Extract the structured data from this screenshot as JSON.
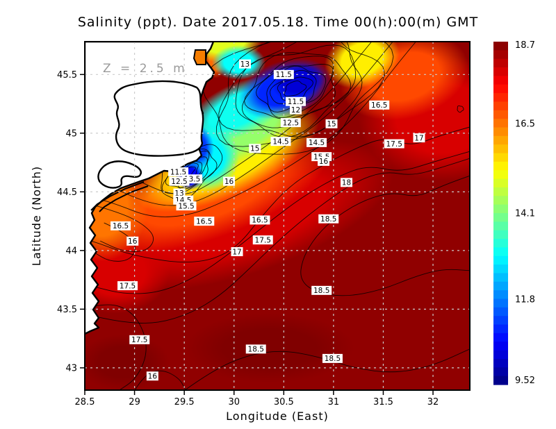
{
  "title": "Salinity (ppt). Date 2017.05.18. Time 00(h):00(m) GMT",
  "annotation": "Z = 2.5 m",
  "axes": {
    "xlabel": "Longitude (East)",
    "ylabel": "Latitude (North)",
    "x_ticks": [
      28.5,
      29,
      29.5,
      30,
      30.5,
      31,
      31.5,
      32
    ],
    "x_tick_labels": [
      "28.5",
      "29",
      "29.5",
      "30",
      "30.5",
      "31",
      "31.5",
      "32"
    ],
    "y_ticks": [
      45.5,
      45,
      44.5,
      44,
      43.5,
      43
    ],
    "y_tick_labels": [
      "45.5",
      "45",
      "44.5",
      "44",
      "43.5",
      "43"
    ]
  },
  "colors": {
    "land": "#ffffff",
    "coast": "#000000",
    "grid": "#cccccc",
    "annotation": "#9a9a9a",
    "inlet": "#f57d00",
    "frame": "#000000"
  },
  "chart_data": {
    "type": "heatmap",
    "subtype": "filled-contour-map",
    "title": "Salinity (ppt). Date 2017.05.18. Time 00(h):00(m) GMT",
    "variable": "Salinity",
    "units": "ppt",
    "date": "2017.05.18",
    "time": "00(h):00(m) GMT",
    "depth_annotation": "Z = 2.5 m",
    "xlabel": "Longitude (East)",
    "ylabel": "Latitude (North)",
    "xlim": [
      28.5,
      32.37
    ],
    "ylim": [
      42.81,
      45.78
    ],
    "grid": true,
    "colormap": "jet",
    "vmin": 9.52,
    "vmax": 18.7,
    "colorbar_ticks": [
      18.7,
      16.5,
      14.1,
      11.8,
      9.52
    ],
    "colorbar_tick_labels": [
      "18.7",
      "16.5",
      "14.1",
      "11.8",
      "9.52"
    ],
    "contour_labels": [
      {
        "v": "13",
        "lon": 30.11,
        "lat": 45.59
      },
      {
        "v": "11.5",
        "lon": 30.5,
        "lat": 45.5
      },
      {
        "v": "11.5",
        "lon": 30.62,
        "lat": 45.27
      },
      {
        "v": "12",
        "lon": 30.62,
        "lat": 45.2
      },
      {
        "v": "12.5",
        "lon": 30.57,
        "lat": 45.09
      },
      {
        "v": "15",
        "lon": 30.98,
        "lat": 45.08
      },
      {
        "v": "14.5",
        "lon": 30.47,
        "lat": 44.93
      },
      {
        "v": "14.5",
        "lon": 30.83,
        "lat": 44.92
      },
      {
        "v": "15",
        "lon": 30.21,
        "lat": 44.87
      },
      {
        "v": "16.5",
        "lon": 31.46,
        "lat": 45.24
      },
      {
        "v": "17",
        "lon": 31.86,
        "lat": 44.96
      },
      {
        "v": "17.5",
        "lon": 31.61,
        "lat": 44.91
      },
      {
        "v": "15.5",
        "lon": 30.88,
        "lat": 44.8
      },
      {
        "v": "16",
        "lon": 30.9,
        "lat": 44.76
      },
      {
        "v": "18",
        "lon": 31.13,
        "lat": 44.58
      },
      {
        "v": "16",
        "lon": 29.95,
        "lat": 44.59
      },
      {
        "v": "11.5",
        "lon": 29.44,
        "lat": 44.67
      },
      {
        "v": "13.5",
        "lon": 29.58,
        "lat": 44.61
      },
      {
        "v": "12.5",
        "lon": 29.45,
        "lat": 44.59
      },
      {
        "v": "13",
        "lon": 29.45,
        "lat": 44.49
      },
      {
        "v": "14.5",
        "lon": 29.49,
        "lat": 44.43
      },
      {
        "v": "15.5",
        "lon": 29.52,
        "lat": 44.38
      },
      {
        "v": "16.5",
        "lon": 29.7,
        "lat": 44.25
      },
      {
        "v": "16.5",
        "lon": 30.26,
        "lat": 44.26
      },
      {
        "v": "18.5",
        "lon": 30.95,
        "lat": 44.27
      },
      {
        "v": "16.5",
        "lon": 28.86,
        "lat": 44.21
      },
      {
        "v": "16",
        "lon": 28.98,
        "lat": 44.08
      },
      {
        "v": "17.5",
        "lon": 30.29,
        "lat": 44.09
      },
      {
        "v": "17",
        "lon": 30.03,
        "lat": 43.99
      },
      {
        "v": "17.5",
        "lon": 28.93,
        "lat": 43.7
      },
      {
        "v": "18.5",
        "lon": 30.88,
        "lat": 43.66
      },
      {
        "v": "17.5",
        "lon": 29.05,
        "lat": 43.24
      },
      {
        "v": "18.5",
        "lon": 30.22,
        "lat": 43.16
      },
      {
        "v": "18.5",
        "lon": 30.99,
        "lat": 43.08
      },
      {
        "v": "16",
        "lon": 29.18,
        "lat": 42.93
      }
    ],
    "field_blobs": [
      {
        "v": 18.55,
        "base": true
      },
      {
        "v": 18.7,
        "cx": 0.6,
        "cy": 0.42,
        "rx": 0.1,
        "ry": 0.08,
        "rot": 0
      },
      {
        "v": 18.7,
        "cx": 0.48,
        "cy": 0.88,
        "rx": 0.22,
        "ry": 0.1,
        "rot": 0
      },
      {
        "v": 18.7,
        "cx": 0.1,
        "cy": 0.92,
        "rx": 0.12,
        "ry": 0.08,
        "rot": 0
      },
      {
        "v": 17.9,
        "cx": 0.4,
        "cy": 0.5,
        "rx": 0.42,
        "ry": 0.17,
        "rot": -18
      },
      {
        "v": 17.9,
        "cx": 0.93,
        "cy": 0.22,
        "rx": 0.22,
        "ry": 0.18,
        "rot": 0
      },
      {
        "v": 17.9,
        "cx": 0.08,
        "cy": 0.66,
        "rx": 0.14,
        "ry": 0.12,
        "rot": 0
      },
      {
        "v": 16.9,
        "cx": 0.32,
        "cy": 0.43,
        "rx": 0.33,
        "ry": 0.135,
        "rot": -20
      },
      {
        "v": 16.9,
        "cx": 0.83,
        "cy": 0.1,
        "rx": 0.17,
        "ry": 0.12,
        "rot": -15
      },
      {
        "v": 16.5,
        "cx": 0.045,
        "cy": 0.47,
        "rx": 0.12,
        "ry": 0.16,
        "rot": 0
      },
      {
        "v": 16.6,
        "cx": 0.34,
        "cy": 0.05,
        "rx": 0.03,
        "ry": 0.055,
        "rot": 0
      },
      {
        "v": 15.4,
        "cx": 0.37,
        "cy": 0.335,
        "rx": 0.26,
        "ry": 0.105,
        "rot": -25
      },
      {
        "v": 15.4,
        "cx": 0.72,
        "cy": 0.05,
        "rx": 0.1,
        "ry": 0.08,
        "rot": -20
      },
      {
        "v": 15.0,
        "cx": 0.36,
        "cy": 0.0,
        "rx": 0.1,
        "ry": 0.06,
        "rot": 0
      },
      {
        "v": 14.3,
        "cx": 0.4,
        "cy": 0.26,
        "rx": 0.2,
        "ry": 0.085,
        "rot": -27
      },
      {
        "v": 13.1,
        "cx": 0.4,
        "cy": 0.195,
        "rx": 0.15,
        "ry": 0.075,
        "rot": -25
      },
      {
        "v": 13.0,
        "cx": 0.4,
        "cy": 0.06,
        "rx": 0.07,
        "ry": 0.05,
        "rot": 0
      },
      {
        "v": 12.9,
        "cx": 0.315,
        "cy": 0.33,
        "rx": 0.085,
        "ry": 0.1,
        "rot": -20
      },
      {
        "v": 11.0,
        "cx": 0.52,
        "cy": 0.135,
        "rx": 0.125,
        "ry": 0.08,
        "rot": -18
      },
      {
        "v": 10.3,
        "cx": 0.555,
        "cy": 0.115,
        "rx": 0.07,
        "ry": 0.05,
        "rot": -15
      },
      {
        "v": 11.2,
        "cx": 0.29,
        "cy": 0.3,
        "rx": 0.045,
        "ry": 0.065,
        "rot": -10
      },
      {
        "v": 10.7,
        "cx": 0.272,
        "cy": 0.385,
        "rx": 0.038,
        "ry": 0.042,
        "rot": -30
      }
    ],
    "contour_rings": [
      {
        "cx": 0.545,
        "cy": 0.135,
        "aspect": 0.62,
        "rot": -22,
        "radii": [
          0.028,
          0.045,
          0.062,
          0.08,
          0.098,
          0.118,
          0.14,
          0.163,
          0.188,
          0.214,
          0.242
        ]
      },
      {
        "cx": 0.272,
        "cy": 0.372,
        "aspect": 0.55,
        "rot": -38,
        "radii": [
          0.016,
          0.027,
          0.038,
          0.05,
          0.063,
          0.077,
          0.092
        ]
      },
      {
        "cx": 0.975,
        "cy": 0.193,
        "aspect": 1.0,
        "rot": 0,
        "radii": [
          0.008
        ]
      }
    ],
    "contour_paths": [
      {
        "level": "16.5",
        "pts": [
          [
            0.86,
            0
          ],
          [
            0.8,
            0.08
          ],
          [
            0.735,
            0.175
          ],
          [
            0.66,
            0.26
          ],
          [
            0.565,
            0.335
          ],
          [
            0.46,
            0.405
          ],
          [
            0.36,
            0.46
          ],
          [
            0.27,
            0.5
          ],
          [
            0.17,
            0.505
          ],
          [
            0.08,
            0.465
          ],
          [
            0,
            0.44
          ]
        ]
      },
      {
        "level": "16",
        "pts": [
          [
            0.8,
            0
          ],
          [
            0.745,
            0.075
          ],
          [
            0.68,
            0.16
          ],
          [
            0.6,
            0.24
          ],
          [
            0.5,
            0.315
          ],
          [
            0.405,
            0.39
          ],
          [
            0.315,
            0.45
          ],
          [
            0.235,
            0.475
          ],
          [
            0.155,
            0.46
          ],
          [
            0.065,
            0.415
          ],
          [
            0,
            0.4
          ]
        ]
      },
      {
        "level": "15.5",
        "pts": [
          [
            0.745,
            0
          ],
          [
            0.7,
            0.06
          ],
          [
            0.645,
            0.135
          ],
          [
            0.575,
            0.21
          ],
          [
            0.49,
            0.285
          ],
          [
            0.405,
            0.35
          ],
          [
            0.33,
            0.405
          ],
          [
            0.27,
            0.44
          ],
          [
            0.21,
            0.435
          ],
          [
            0.15,
            0.405
          ]
        ]
      },
      {
        "level": "17",
        "pts": [
          [
            1,
            0.245
          ],
          [
            0.92,
            0.27
          ],
          [
            0.85,
            0.3
          ],
          [
            0.78,
            0.275
          ],
          [
            0.715,
            0.3
          ],
          [
            0.625,
            0.35
          ],
          [
            0.535,
            0.41
          ],
          [
            0.46,
            0.5
          ],
          [
            0.4,
            0.585
          ],
          [
            0.335,
            0.625
          ],
          [
            0.26,
            0.635
          ],
          [
            0.18,
            0.625
          ],
          [
            0.1,
            0.605
          ],
          [
            0.035,
            0.578
          ],
          [
            0,
            0.567
          ]
        ]
      },
      {
        "level": "17.5",
        "pts": [
          [
            1,
            0.315
          ],
          [
            0.905,
            0.345
          ],
          [
            0.82,
            0.375
          ],
          [
            0.735,
            0.355
          ],
          [
            0.66,
            0.385
          ],
          [
            0.565,
            0.445
          ],
          [
            0.47,
            0.525
          ],
          [
            0.38,
            0.605
          ],
          [
            0.29,
            0.675
          ],
          [
            0.195,
            0.72
          ],
          [
            0.105,
            0.725
          ],
          [
            0.03,
            0.705
          ],
          [
            0,
            0.695
          ]
        ]
      },
      {
        "level": "17.5",
        "pts": [
          [
            0,
            0.765
          ],
          [
            0.06,
            0.748
          ],
          [
            0.12,
            0.772
          ],
          [
            0.155,
            0.832
          ],
          [
            0.162,
            0.9
          ],
          [
            0.133,
            0.968
          ],
          [
            0.09,
            1
          ]
        ]
      },
      {
        "level": "18",
        "pts": [
          [
            1,
            0.335
          ],
          [
            0.925,
            0.362
          ],
          [
            0.85,
            0.385
          ],
          [
            0.78,
            0.372
          ],
          [
            0.705,
            0.4
          ],
          [
            0.625,
            0.46
          ],
          [
            0.55,
            0.525
          ],
          [
            0.48,
            0.595
          ],
          [
            0.415,
            0.665
          ],
          [
            0.35,
            0.73
          ],
          [
            0.275,
            0.78
          ],
          [
            0.185,
            0.81
          ],
          [
            0.095,
            0.805
          ],
          [
            0,
            0.782
          ]
        ]
      },
      {
        "level": "18.5",
        "pts": [
          [
            1,
            0.385
          ],
          [
            0.93,
            0.412
          ],
          [
            0.865,
            0.447
          ],
          [
            0.8,
            0.432
          ],
          [
            0.73,
            0.452
          ],
          [
            0.655,
            0.5
          ],
          [
            0.6,
            0.558
          ],
          [
            0.565,
            0.623
          ],
          [
            0.558,
            0.685
          ],
          [
            0.603,
            0.722
          ],
          [
            0.68,
            0.732
          ],
          [
            0.77,
            0.713
          ],
          [
            0.862,
            0.672
          ],
          [
            0.932,
            0.652
          ],
          [
            1,
            0.657
          ]
        ]
      },
      {
        "level": "18.5",
        "pts": [
          [
            0.26,
            1
          ],
          [
            0.33,
            0.945
          ],
          [
            0.42,
            0.9
          ],
          [
            0.51,
            0.885
          ],
          [
            0.6,
            0.902
          ],
          [
            0.7,
            0.937
          ],
          [
            0.8,
            0.952
          ],
          [
            0.9,
            0.932
          ],
          [
            1,
            0.882
          ]
        ]
      },
      {
        "level": "16",
        "pts": [
          [
            0.05,
            0.52
          ],
          [
            0.1,
            0.545
          ],
          [
            0.137,
            0.585
          ],
          [
            0.118,
            0.628
          ],
          [
            0.065,
            0.632
          ],
          [
            0.02,
            0.602
          ]
        ]
      },
      {
        "level": "16.5",
        "pts": [
          [
            0.02,
            0.468
          ],
          [
            0.09,
            0.49
          ],
          [
            0.15,
            0.522
          ],
          [
            0.185,
            0.562
          ],
          [
            0.162,
            0.602
          ],
          [
            0.1,
            0.603
          ],
          [
            0.04,
            0.572
          ]
        ]
      },
      {
        "level": "16",
        "pts": [
          [
            0.13,
            1
          ],
          [
            0.155,
            0.955
          ],
          [
            0.2,
            0.94
          ],
          [
            0.245,
            0.965
          ],
          [
            0.262,
            1
          ]
        ]
      }
    ]
  }
}
